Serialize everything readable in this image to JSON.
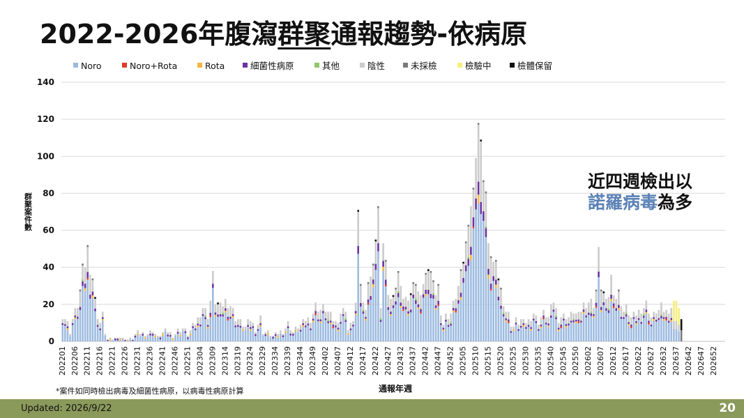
{
  "slide": {
    "title_pre": "2022-2026年腹瀉",
    "title_underlined": "群聚",
    "title_post": "通報趨勢-依病原",
    "callout_line1": "近四週檢出以",
    "callout_blue": "諾羅病毒",
    "callout_suffix": "為多",
    "footnote": "*案件如同時檢出病毒及細菌性病原，以病毒性病原計算",
    "updated": "Updated: 2026/9/22",
    "page_number": "20"
  },
  "chart_data": {
    "type": "bar",
    "stacked": true,
    "xlabel": "通報年週",
    "ylabel": "群聚案件數",
    "ylim": [
      0,
      140
    ],
    "yticks": [
      0,
      20,
      40,
      60,
      80,
      100,
      120,
      140
    ],
    "grid": true,
    "legend_position": "top",
    "legend": [
      {
        "name": "Noro",
        "color": "#9dbbe0"
      },
      {
        "name": "Noro+Rota",
        "color": "#e03a2b"
      },
      {
        "name": "Rota",
        "color": "#f2b640"
      },
      {
        "name": "細菌性病原",
        "color": "#6a33a0"
      },
      {
        "name": "其他",
        "color": "#8fc66a"
      },
      {
        "name": "陰性",
        "color": "#cbcbcb"
      },
      {
        "name": "未採檢",
        "color": "#7a7a7a"
      },
      {
        "name": "檢驗中",
        "color": "#f5ee7a"
      },
      {
        "name": "檢體保留",
        "color": "#111111"
      }
    ],
    "x_tick_labels": [
      "202201",
      "202206",
      "202211",
      "202216",
      "202221",
      "202226",
      "202231",
      "202236",
      "202241",
      "202246",
      "202251",
      "202304",
      "202309",
      "202314",
      "202319",
      "202324",
      "202329",
      "202334",
      "202339",
      "202344",
      "202349",
      "202402",
      "202407",
      "202412",
      "202417",
      "202422",
      "202427",
      "202432",
      "202437",
      "202442",
      "202447",
      "202452",
      "202505",
      "202510",
      "202515",
      "202520",
      "202525",
      "202530",
      "202535",
      "202540",
      "202545",
      "202550",
      "202602",
      "202607",
      "202612",
      "202617",
      "202622",
      "202627",
      "202632",
      "202637",
      "202642",
      "202647",
      "202652"
    ],
    "weeks_per_tick": 5,
    "period_note": "weekly bars from 2022W01 to 2026W52; approximate reading",
    "anchors": [
      [
        0,
        14
      ],
      [
        2,
        10
      ],
      [
        3,
        5
      ],
      [
        4,
        12
      ],
      [
        6,
        20
      ],
      [
        7,
        27
      ],
      [
        8,
        38
      ],
      [
        9,
        42
      ],
      [
        10,
        50
      ],
      [
        11,
        40
      ],
      [
        12,
        35
      ],
      [
        13,
        22
      ],
      [
        14,
        14
      ],
      [
        15,
        10
      ],
      [
        16,
        14
      ],
      [
        17,
        5
      ],
      [
        18,
        1
      ],
      [
        20,
        1
      ],
      [
        22,
        3
      ],
      [
        25,
        1
      ],
      [
        28,
        2
      ],
      [
        30,
        5
      ],
      [
        33,
        4
      ],
      [
        36,
        6
      ],
      [
        38,
        2
      ],
      [
        40,
        5
      ],
      [
        42,
        6
      ],
      [
        44,
        3
      ],
      [
        46,
        6
      ],
      [
        48,
        7
      ],
      [
        50,
        4
      ],
      [
        52,
        8
      ],
      [
        54,
        12
      ],
      [
        56,
        19
      ],
      [
        58,
        14
      ],
      [
        59,
        22
      ],
      [
        60,
        35
      ],
      [
        61,
        22
      ],
      [
        63,
        18
      ],
      [
        65,
        22
      ],
      [
        67,
        20
      ],
      [
        69,
        13
      ],
      [
        71,
        10
      ],
      [
        73,
        8
      ],
      [
        75,
        12
      ],
      [
        77,
        6
      ],
      [
        79,
        13
      ],
      [
        80,
        5
      ],
      [
        82,
        5
      ],
      [
        84,
        3
      ],
      [
        86,
        5
      ],
      [
        88,
        5
      ],
      [
        90,
        10
      ],
      [
        92,
        5
      ],
      [
        95,
        9
      ],
      [
        97,
        12
      ],
      [
        99,
        12
      ],
      [
        101,
        19
      ],
      [
        103,
        17
      ],
      [
        105,
        18
      ],
      [
        107,
        14
      ],
      [
        109,
        10
      ],
      [
        111,
        15
      ],
      [
        113,
        18
      ],
      [
        114,
        6
      ],
      [
        116,
        12
      ],
      [
        117,
        20
      ],
      [
        118,
        66
      ],
      [
        119,
        32
      ],
      [
        120,
        20
      ],
      [
        121,
        20
      ],
      [
        122,
        33
      ],
      [
        123,
        33
      ],
      [
        124,
        45
      ],
      [
        125,
        55
      ],
      [
        126,
        69
      ],
      [
        127,
        20
      ],
      [
        128,
        52
      ],
      [
        129,
        40
      ],
      [
        130,
        26
      ],
      [
        131,
        22
      ],
      [
        132,
        28
      ],
      [
        133,
        30
      ],
      [
        134,
        36
      ],
      [
        135,
        33
      ],
      [
        136,
        23
      ],
      [
        137,
        22
      ],
      [
        139,
        25
      ],
      [
        141,
        32
      ],
      [
        142,
        26
      ],
      [
        143,
        28
      ],
      [
        145,
        35
      ],
      [
        146,
        42
      ],
      [
        147,
        38
      ],
      [
        148,
        30
      ],
      [
        149,
        27
      ],
      [
        150,
        30
      ],
      [
        151,
        12
      ],
      [
        152,
        10
      ],
      [
        153,
        14
      ],
      [
        155,
        15
      ],
      [
        157,
        25
      ],
      [
        158,
        30
      ],
      [
        159,
        36
      ],
      [
        160,
        45
      ],
      [
        161,
        53
      ],
      [
        162,
        58
      ],
      [
        163,
        75
      ],
      [
        164,
        81
      ],
      [
        165,
        105
      ],
      [
        166,
        119
      ],
      [
        167,
        105
      ],
      [
        168,
        92
      ],
      [
        169,
        81
      ],
      [
        170,
        50
      ],
      [
        171,
        48
      ],
      [
        172,
        42
      ],
      [
        173,
        40
      ],
      [
        174,
        35
      ],
      [
        175,
        28
      ],
      [
        176,
        22
      ],
      [
        177,
        16
      ],
      [
        178,
        15
      ],
      [
        179,
        10
      ],
      [
        180,
        8
      ],
      [
        181,
        11
      ],
      [
        182,
        10
      ],
      [
        183,
        12
      ],
      [
        184,
        10
      ],
      [
        186,
        11
      ],
      [
        188,
        15
      ],
      [
        190,
        11
      ],
      [
        192,
        15
      ],
      [
        194,
        13
      ],
      [
        196,
        22
      ],
      [
        198,
        12
      ],
      [
        200,
        14
      ],
      [
        202,
        13
      ],
      [
        204,
        16
      ],
      [
        206,
        14
      ],
      [
        208,
        20
      ],
      [
        210,
        22
      ],
      [
        212,
        20
      ],
      [
        213,
        28
      ],
      [
        214,
        48
      ],
      [
        215,
        30
      ],
      [
        216,
        26
      ],
      [
        217,
        20
      ],
      [
        218,
        25
      ],
      [
        219,
        35
      ],
      [
        220,
        28
      ],
      [
        221,
        24
      ],
      [
        222,
        26
      ],
      [
        223,
        21
      ],
      [
        224,
        16
      ],
      [
        225,
        18
      ],
      [
        227,
        13
      ],
      [
        229,
        15
      ],
      [
        231,
        17
      ],
      [
        233,
        20
      ],
      [
        235,
        13
      ],
      [
        237,
        16
      ],
      [
        239,
        18
      ],
      [
        241,
        16
      ],
      [
        243,
        19
      ],
      [
        244,
        20
      ],
      [
        245,
        24
      ],
      [
        246,
        18
      ],
      [
        247,
        10
      ],
      [
        248,
        0
      ],
      [
        260,
        0
      ]
    ],
    "callout_note": "near-term weeks mostly Noro",
    "in_testing_weeks": [
      244,
      245,
      246
    ],
    "retained_weeks": [
      247
    ]
  }
}
